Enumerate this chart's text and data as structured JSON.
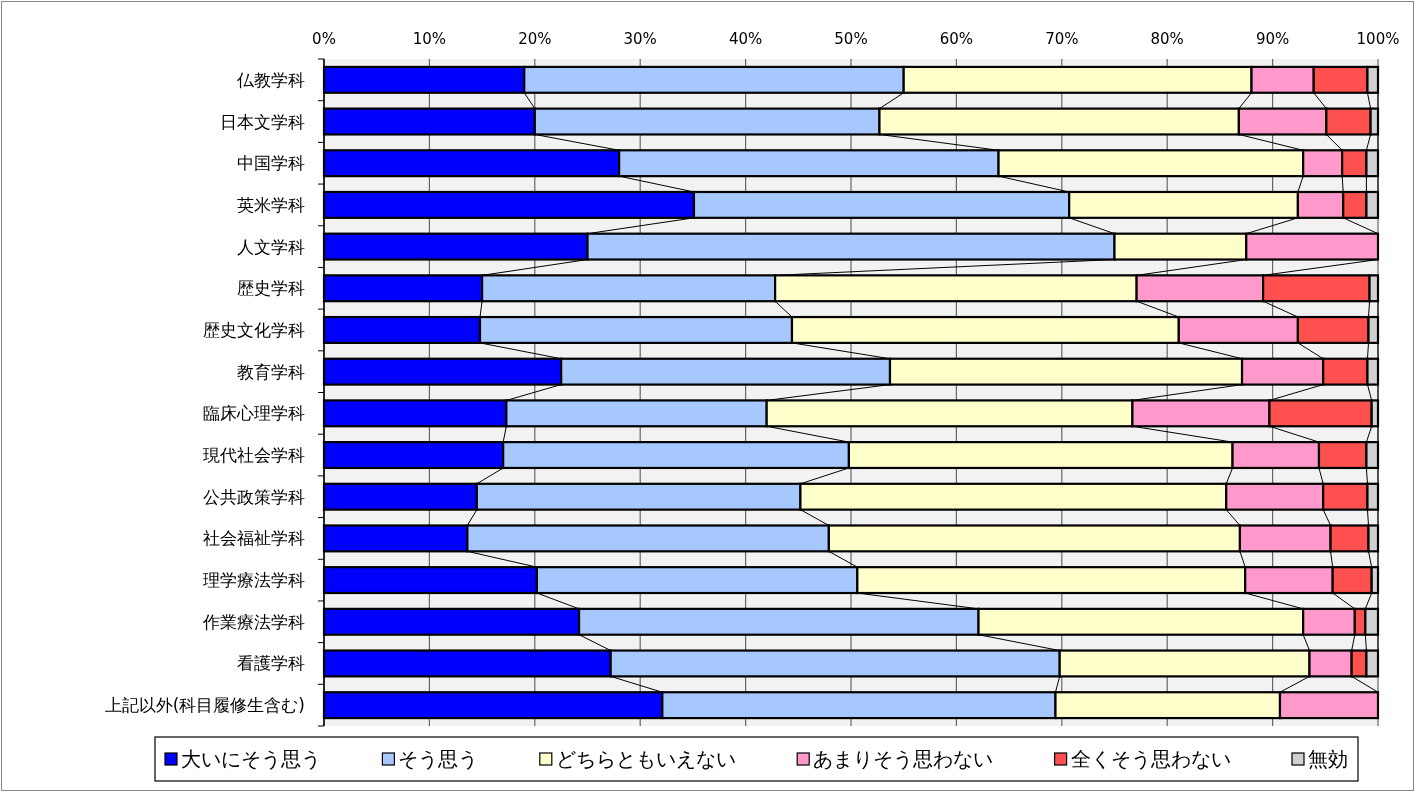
{
  "chart_data": {
    "type": "bar",
    "orientation": "horizontal",
    "stacked": true,
    "categories": [
      "仏教学科",
      "日本文学科",
      "中国学科",
      "英米学科",
      "人文学科",
      "歴史学科",
      "歴史文化学科",
      "教育学科",
      "臨床心理学科",
      "現代社会学科",
      "公共政策学科",
      "社会福祉学科",
      "理学療法学科",
      "作業療法学科",
      "看護学科",
      "上記以外(科目履修生含む)"
    ],
    "series": [
      {
        "name": "大いにそう思う",
        "color": "#0000ff",
        "values": [
          19.0,
          20.0,
          28.0,
          35.1,
          25.0,
          15.0,
          14.8,
          22.5,
          17.3,
          17.0,
          14.5,
          13.6,
          20.2,
          24.2,
          27.2,
          32.1
        ]
      },
      {
        "name": "そう思う",
        "color": "#a6c8ff",
        "values": [
          36.0,
          32.7,
          36.0,
          35.6,
          50.0,
          27.8,
          29.6,
          31.2,
          24.7,
          32.8,
          30.7,
          34.3,
          30.4,
          37.9,
          42.6,
          37.3
        ]
      },
      {
        "name": "どちらともいえない",
        "color": "#ffffcc",
        "values": [
          33.0,
          34.1,
          28.9,
          21.7,
          12.5,
          34.3,
          36.7,
          33.4,
          34.7,
          36.4,
          40.4,
          39.0,
          36.8,
          30.8,
          23.7,
          21.3
        ]
      },
      {
        "name": "あまりそう思わない",
        "color": "#ff99cc",
        "values": [
          5.9,
          8.3,
          3.7,
          4.3,
          12.5,
          12.0,
          11.3,
          7.7,
          13.0,
          8.2,
          9.2,
          8.6,
          8.3,
          4.9,
          4.0,
          9.3
        ]
      },
      {
        "name": "全くそう思わない",
        "color": "#ff5050",
        "values": [
          5.1,
          4.2,
          2.3,
          2.2,
          0,
          10.1,
          6.7,
          4.2,
          9.7,
          4.5,
          4.2,
          3.6,
          3.7,
          1.0,
          1.4,
          0
        ]
      },
      {
        "name": "無効",
        "color": "#d0d0d0",
        "values": [
          1.0,
          0.7,
          1.1,
          1.1,
          0,
          0.8,
          0.9,
          1.0,
          0.6,
          1.1,
          1.0,
          0.9,
          0.6,
          1.2,
          1.1,
          0
        ]
      }
    ],
    "xlim": [
      0,
      100
    ],
    "xticks": [
      {
        "value": 0,
        "label": "0%"
      },
      {
        "value": 10,
        "label": "10%"
      },
      {
        "value": 20,
        "label": "20%"
      },
      {
        "value": 30,
        "label": "30%"
      },
      {
        "value": 40,
        "label": "40%"
      },
      {
        "value": 50,
        "label": "50%"
      },
      {
        "value": 60,
        "label": "60%"
      },
      {
        "value": 70,
        "label": "70%"
      },
      {
        "value": 80,
        "label": "80%"
      },
      {
        "value": 90,
        "label": "90%"
      },
      {
        "value": 100,
        "label": "100%"
      }
    ],
    "grid": "x",
    "legend": "bottom"
  }
}
